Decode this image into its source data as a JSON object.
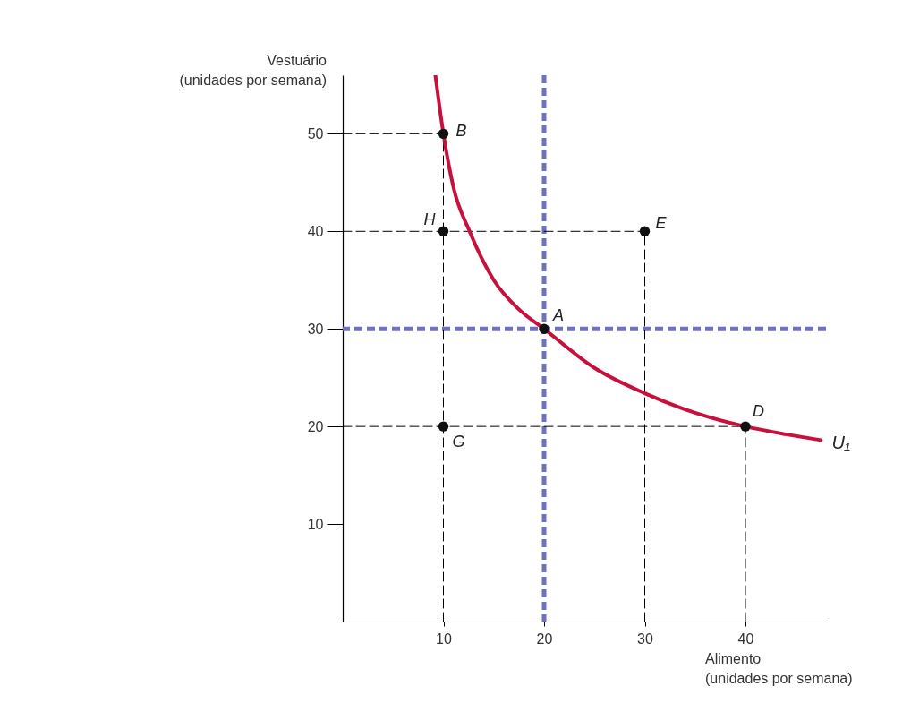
{
  "chart_data": {
    "type": "line",
    "xlabel": "Alimento\n(unidades por semana)",
    "ylabel": "Vestuário\n(unidades por semana)",
    "xlim": [
      0,
      48
    ],
    "ylim": [
      0,
      56
    ],
    "xticks": [
      10,
      20,
      30,
      40
    ],
    "yticks": [
      10,
      20,
      30,
      40,
      50
    ],
    "grid": false,
    "series": [
      {
        "name": "U₁",
        "color": "#c8103c",
        "line_style": "solid",
        "marker": "none",
        "x": [
          9.2,
          10,
          11,
          12.6,
          15,
          17.5,
          20,
          25,
          30,
          35,
          40,
          44,
          47.5
        ],
        "values": [
          56,
          50,
          44.5,
          40,
          35,
          32,
          30,
          26,
          23.4,
          21.4,
          20,
          19.2,
          18.6
        ]
      },
      {
        "type": "line",
        "color": "#000000",
        "line_style": "dashed",
        "marker": "none",
        "x": [
          0,
          10
        ],
        "values": [
          50,
          50
        ]
      },
      {
        "type": "line",
        "color": "#000000",
        "line_style": "dashed",
        "marker": "none",
        "x": [
          0,
          30
        ],
        "values": [
          40,
          40
        ]
      },
      {
        "type": "line",
        "color": "#000000",
        "line_style": "dashed",
        "marker": "none",
        "x": [
          0,
          40
        ],
        "values": [
          20,
          20
        ]
      },
      {
        "type": "line",
        "color": "#000000",
        "line_style": "dashed",
        "marker": "none",
        "x": [
          10,
          10
        ],
        "values": [
          0,
          50
        ]
      },
      {
        "type": "line",
        "color": "#000000",
        "line_style": "dashed",
        "marker": "none",
        "x": [
          30,
          30
        ],
        "values": [
          0,
          40
        ]
      },
      {
        "type": "line",
        "color": "#000000",
        "line_style": "dashed",
        "marker": "none",
        "x": [
          40,
          40
        ],
        "values": [
          0,
          20
        ]
      },
      {
        "type": "scatter",
        "color": "#111111",
        "marker": "circle",
        "x": [
          10,
          10,
          30,
          20,
          10,
          40
        ],
        "values": [
          50,
          40,
          40,
          30,
          20,
          20
        ]
      }
    ],
    "ref_lines": [
      {
        "axis": "x",
        "value": 20,
        "color": "#7070c0",
        "line_style": "dashed"
      },
      {
        "axis": "y",
        "value": 30,
        "color": "#7070c0",
        "line_style": "dashed"
      }
    ],
    "annotations": [
      {
        "text": "B",
        "x": 10,
        "y": 50
      },
      {
        "text": "H",
        "x": 10,
        "y": 40
      },
      {
        "text": "E",
        "x": 30,
        "y": 40
      },
      {
        "text": "A",
        "x": 20,
        "y": 30
      },
      {
        "text": "G",
        "x": 10,
        "y": 20
      },
      {
        "text": "D",
        "x": 40,
        "y": 20
      }
    ]
  }
}
